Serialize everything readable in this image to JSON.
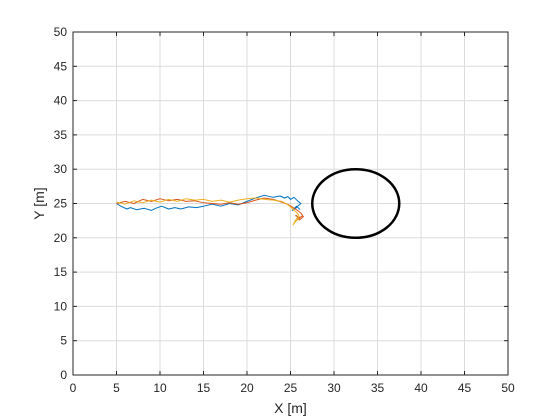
{
  "chart_data": {
    "type": "line",
    "xlabel": "X [m]",
    "ylabel": "Y [m]",
    "xlim": [
      0,
      50
    ],
    "ylim": [
      0,
      50
    ],
    "xticks": [
      0,
      5,
      10,
      15,
      20,
      25,
      30,
      35,
      40,
      45,
      50
    ],
    "yticks": [
      0,
      5,
      10,
      15,
      20,
      25,
      30,
      35,
      40,
      45,
      50
    ],
    "grid": true,
    "series": [
      {
        "color": "#0072BD",
        "x": [
          5.0,
          5.5,
          6.2,
          6.6,
          7.3,
          8.2,
          9.0,
          9.5,
          10.2,
          11.0,
          11.7,
          12.4,
          13.3,
          14.2,
          15.0,
          16.0,
          17.0,
          18.0,
          19.0,
          20.0,
          21.0,
          22.0,
          23.0,
          23.8,
          24.3,
          24.7,
          25.0,
          25.4,
          25.8,
          26.2,
          25.9,
          25.6,
          25.2,
          25.7,
          26.1
        ],
        "y": [
          25.0,
          24.6,
          24.2,
          24.4,
          24.1,
          24.3,
          24.0,
          24.3,
          24.6,
          24.2,
          24.4,
          24.2,
          24.5,
          24.4,
          24.6,
          24.9,
          24.6,
          25.0,
          24.8,
          25.3,
          25.8,
          26.2,
          25.9,
          26.1,
          25.8,
          26.0,
          25.6,
          25.9,
          25.4,
          25.0,
          24.7,
          24.3,
          24.0,
          24.6,
          24.1
        ]
      },
      {
        "color": "#D95319",
        "x": [
          5.0,
          6.0,
          7.0,
          8.0,
          9.0,
          10.0,
          11.0,
          12.0,
          13.0,
          14.0,
          15.0,
          16.0,
          17.0,
          18.0,
          19.0,
          20.0,
          21.0,
          22.0,
          23.0,
          24.0,
          24.8,
          25.3,
          25.8,
          26.2,
          26.4,
          26.0,
          25.6,
          26.1,
          26.5,
          26.0,
          25.7
        ],
        "y": [
          25.0,
          25.3,
          25.0,
          25.6,
          25.3,
          25.7,
          25.4,
          25.6,
          25.3,
          25.4,
          25.1,
          25.0,
          24.9,
          25.1,
          24.9,
          25.1,
          25.5,
          25.8,
          25.6,
          25.2,
          24.8,
          24.4,
          24.0,
          23.6,
          23.2,
          22.9,
          23.3,
          22.7,
          23.1,
          22.6,
          22.9
        ]
      },
      {
        "color": "#EDB120",
        "x": [
          5.0,
          6.0,
          7.0,
          8.0,
          9.0,
          10.0,
          11.0,
          12.0,
          13.0,
          14.0,
          15.0,
          16.0,
          17.0,
          18.0,
          19.0,
          20.0,
          21.0,
          22.0,
          23.0,
          24.0,
          24.6,
          25.0,
          25.4,
          25.8,
          26.0,
          25.6,
          25.3,
          25.6,
          26.0
        ],
        "y": [
          25.2,
          24.9,
          25.4,
          25.1,
          25.5,
          25.2,
          25.6,
          25.3,
          25.7,
          25.5,
          25.6,
          25.3,
          25.5,
          25.2,
          25.5,
          25.7,
          25.8,
          25.6,
          25.5,
          25.3,
          24.9,
          24.5,
          24.0,
          23.6,
          23.1,
          22.6,
          21.9,
          22.4,
          22.8
        ]
      }
    ],
    "obstacle": {
      "shape": "ellipse",
      "center": [
        32.5,
        25.0
      ],
      "radius_x": 5.0,
      "radius_y": 5.0,
      "color": "#000000"
    }
  }
}
